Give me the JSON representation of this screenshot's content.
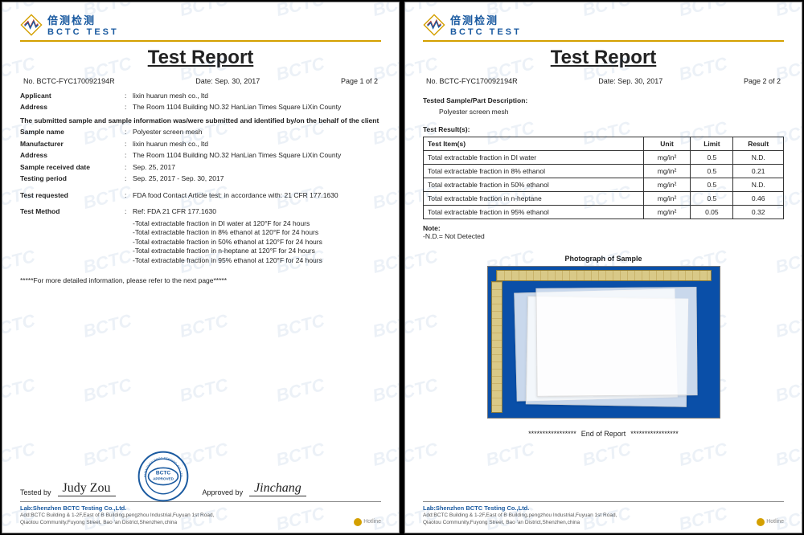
{
  "company": {
    "cn": "倍测检测",
    "en": "BCTC TEST",
    "watermark": "BCTC"
  },
  "title": "Test Report",
  "header": {
    "report_no_label": "No.",
    "report_no": "BCTC-FYC170092194R",
    "date_label": "Date:",
    "date": "Sep. 30, 2017",
    "page1": "Page 1 of 2",
    "page2": "Page 2 of 2"
  },
  "page1": {
    "fields": [
      {
        "label": "Applicant",
        "value": "lixin huarun mesh co., ltd"
      },
      {
        "label": "Address",
        "value": "The Room 1104 Building NO.32 HanLian Times Square LiXin County"
      }
    ],
    "submitted_text": "The submitted sample and sample information was/were submitted and identified by/on the behalf of the client",
    "fields2": [
      {
        "label": "Sample name",
        "value": "Polyester screen mesh"
      },
      {
        "label": "Manufacturer",
        "value": "lixin huarun mesh co., ltd"
      },
      {
        "label": "Address",
        "value": "The Room 1104 Building NO.32 HanLian Times Square LiXin County"
      },
      {
        "label": "Sample received date",
        "value": "Sep. 25, 2017"
      },
      {
        "label": "Testing period",
        "value": "Sep. 25, 2017 - Sep. 30, 2017"
      }
    ],
    "test_requested_label": "Test requested",
    "test_requested_value": "FDA food Contact Article test: in accordance with: 21 CFR 177.1630",
    "test_method_label": "Test Method",
    "test_method_ref": "Ref: FDA 21 CFR 177.1630",
    "test_method_lines": [
      "-Total extractable fraction in DI water at 120°F for 24 hours",
      "-Total extractable fraction in 8% ethanol at 120°F for 24 hours",
      "-Total extractable fraction in 50% ethanol at 120°F for 24 hours",
      "-Total extractable fraction in n-heptane at 120°F for 24 hours",
      "-Total extractable fraction in 95% ethanol at 120°F for 24 hours"
    ],
    "more_info": "*****For more detailed information, please refer to the next page*****",
    "tested_by_label": "Tested by",
    "tested_by_name": "Judy Zou",
    "approved_by_label": "Approved by",
    "approved_by_name": "Jinchang",
    "stamp_top": "BCTC",
    "stamp_mid": "APPROVED"
  },
  "page2": {
    "desc_label": "Tested Sample/Part Description:",
    "desc_value": "Polyester screen mesh",
    "results_label": "Test Result(s):",
    "table": {
      "headers": [
        "Test Item(s)",
        "Unit",
        "Limit",
        "Result"
      ],
      "rows": [
        [
          "Total extractable fraction in DI water",
          "mg/in²",
          "0.5",
          "N.D."
        ],
        [
          "Total extractable fraction in 8% ethanol",
          "mg/in²",
          "0.5",
          "0.21"
        ],
        [
          "Total extractable fraction in 50% ethanol",
          "mg/in²",
          "0.5",
          "N.D."
        ],
        [
          "Total extractable fraction in n-heptane",
          "mg/in²",
          "0.5",
          "0.46"
        ],
        [
          "Total extractable fraction in 95% ethanol",
          "mg/in²",
          "0.05",
          "0.32"
        ]
      ]
    },
    "note_label": "Note:",
    "note_text": "-N.D.= Not Detected",
    "photo_label": "Photograph of Sample",
    "end_label": "End of Report"
  },
  "footer": {
    "lab": "Lab:Shenzhen BCTC Testing Co.,Ltd.",
    "addr1": "Add:BCTC Building & 1-2F,East of B Building,pengzhou Industrial,Fuyuan 1st Road,",
    "addr2": "Qiaotou Community,Fuyong Street, Bao 'an District,Shenzhen,china",
    "hotline": "Hotline"
  },
  "colors": {
    "brand_blue": "#1a5aa0",
    "brand_gold": "#d4a000",
    "photo_bg": "#0a4fa8"
  }
}
